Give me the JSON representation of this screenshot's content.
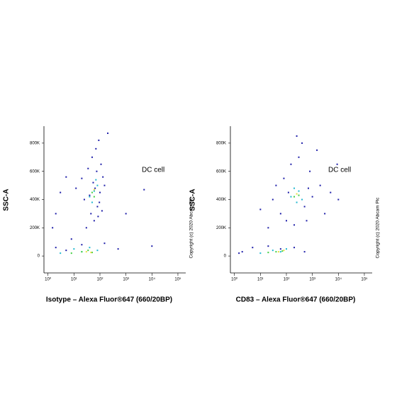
{
  "chart_data": [
    {
      "type": "scatter",
      "xlabel": "Isotype – Alexa Fluor®647 (660/20BP)",
      "ylabel": "SSC-A",
      "annotation": "DC cell",
      "side_text": "Copyright (c) 2020 Abcam Plc",
      "xscale": "log",
      "xlim": [
        0.7,
        200000
      ],
      "ylim": [
        -120000,
        920000
      ],
      "xticks": [
        {
          "value": 1,
          "label": "10⁰"
        },
        {
          "value": 10,
          "label": "10¹"
        },
        {
          "value": 100,
          "label": "10²"
        },
        {
          "value": 1000,
          "label": "10³"
        },
        {
          "value": 10000,
          "label": "10⁴"
        },
        {
          "value": 100000,
          "label": "10⁵"
        }
      ],
      "yticks": [
        0,
        {
          "value": 200000,
          "label": "200K"
        },
        {
          "value": 400000,
          "label": "400K"
        },
        {
          "value": 600000,
          "label": "600K"
        },
        {
          "value": 800000,
          "label": "800K"
        }
      ],
      "series": [
        {
          "color": "#1c1ca8",
          "x": [
            12,
            20,
            35,
            50,
            70,
            90,
            110,
            130,
            25,
            45,
            60,
            80,
            100,
            150,
            30,
            55,
            75,
            95,
            40,
            65,
            85,
            120,
            5,
            3,
            2,
            1.5,
            8,
            200,
            1000,
            5000,
            10000,
            500,
            2,
            5,
            20,
            150
          ],
          "values": [
            480000,
            550000,
            620000,
            700000,
            760000,
            820000,
            650000,
            560000,
            400000,
            300000,
            250000,
            350000,
            450000,
            500000,
            200000,
            520000,
            600000,
            380000,
            430000,
            480000,
            280000,
            320000,
            560000,
            450000,
            300000,
            200000,
            120000,
            870000,
            300000,
            470000,
            70000,
            50000,
            60000,
            40000,
            80000,
            90000
          ]
        },
        {
          "color": "#20b8d0",
          "x": [
            40,
            60,
            80,
            50,
            70,
            10,
            20,
            40,
            80,
            3
          ],
          "values": [
            420000,
            460000,
            500000,
            380000,
            540000,
            50000,
            30000,
            60000,
            40000,
            20000
          ]
        },
        {
          "color": "#40d040",
          "x": [
            50,
            60,
            20,
            35,
            50,
            8
          ],
          "values": [
            450000,
            420000,
            30000,
            40000,
            25000,
            20000
          ]
        },
        {
          "color": "#e8e040",
          "x": [
            30,
            45,
            60
          ],
          "values": [
            30000,
            25000,
            470000
          ]
        }
      ]
    },
    {
      "type": "scatter",
      "xlabel": "CD83 – Alexa Fluor®647 (660/20BP)",
      "ylabel": "SSC-A",
      "annotation": "DC cell",
      "side_text": "Copyright (c) 2020 Abcam Plc",
      "xscale": "log",
      "xlim": [
        0.7,
        200000
      ],
      "ylim": [
        -120000,
        920000
      ],
      "xticks": [
        {
          "value": 1,
          "label": "10⁰"
        },
        {
          "value": 10,
          "label": "10¹"
        },
        {
          "value": 100,
          "label": "10²"
        },
        {
          "value": 1000,
          "label": "10³"
        },
        {
          "value": 10000,
          "label": "10⁴"
        },
        {
          "value": 100000,
          "label": "10⁵"
        }
      ],
      "yticks": [
        0,
        {
          "value": 200000,
          "label": "200K"
        },
        {
          "value": 400000,
          "label": "400K"
        },
        {
          "value": 600000,
          "label": "600K"
        },
        {
          "value": 800000,
          "label": "800K"
        }
      ],
      "series": [
        {
          "color": "#1c1ca8",
          "x": [
            30,
            60,
            100,
            200,
            500,
            1000,
            2000,
            800,
            300,
            150,
            80,
            40,
            400,
            1500,
            5000,
            20,
            10,
            3000,
            600,
            250,
            700,
            120,
            2,
            5,
            20,
            60,
            200,
            500,
            1.5,
            10000,
            9000
          ],
          "values": [
            400000,
            300000,
            250000,
            220000,
            350000,
            420000,
            500000,
            600000,
            700000,
            650000,
            550000,
            500000,
            800000,
            750000,
            450000,
            200000,
            330000,
            300000,
            250000,
            850000,
            480000,
            450000,
            30000,
            60000,
            70000,
            50000,
            60000,
            30000,
            20000,
            400000,
            650000
          ]
        },
        {
          "color": "#20b8d0",
          "x": [
            150,
            250,
            300,
            200,
            400,
            30,
            60,
            100,
            10
          ],
          "values": [
            420000,
            380000,
            460000,
            480000,
            400000,
            40000,
            30000,
            50000,
            20000
          ]
        },
        {
          "color": "#40d040",
          "x": [
            200,
            300,
            40,
            70,
            20
          ],
          "values": [
            420000,
            430000,
            30000,
            35000,
            25000
          ]
        },
        {
          "color": "#e8e040",
          "x": [
            250,
            50,
            80
          ],
          "values": [
            440000,
            30000,
            40000
          ]
        }
      ]
    }
  ]
}
